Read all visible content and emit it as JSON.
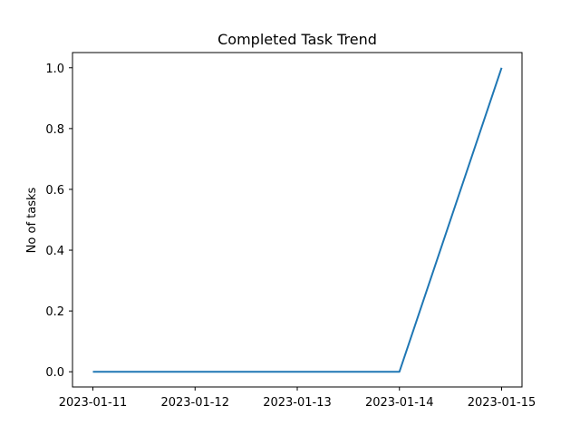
{
  "chart_data": {
    "type": "line",
    "title": "Completed Task Trend",
    "xlabel": "",
    "ylabel": "No of tasks",
    "x": [
      "2023-01-11",
      "2023-01-12",
      "2023-01-13",
      "2023-01-14",
      "2023-01-15"
    ],
    "series": [
      {
        "values": [
          0,
          0,
          0,
          0,
          1
        ],
        "color": "#1f77b4"
      }
    ],
    "y_ticks": [
      "0.0",
      "0.2",
      "0.4",
      "0.6",
      "0.8",
      "1.0"
    ],
    "ylim": [
      -0.05,
      1.05
    ],
    "grid": false,
    "legend": "none"
  }
}
